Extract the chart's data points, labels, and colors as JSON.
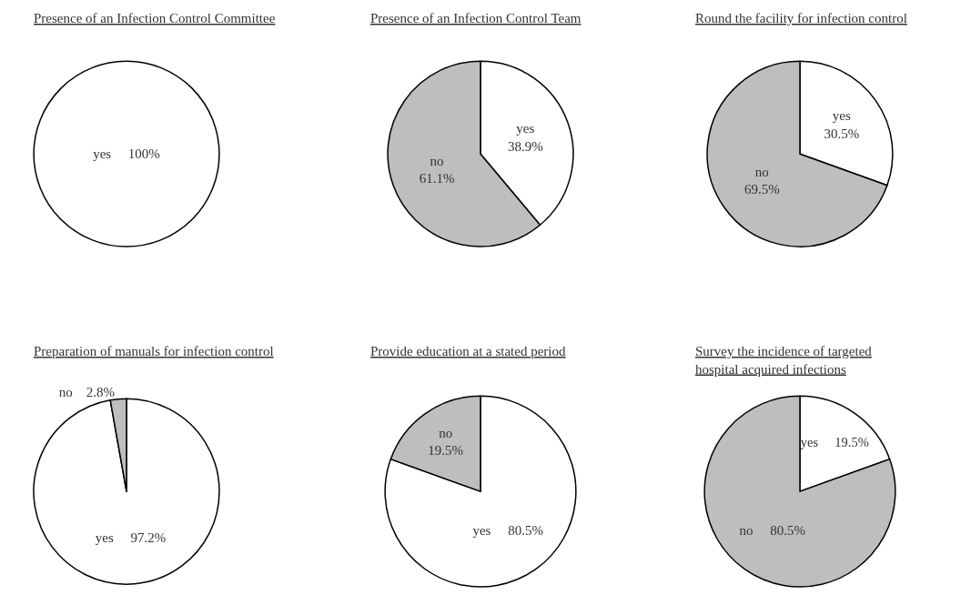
{
  "chart_data": [
    {
      "type": "pie",
      "title": "Presence of an Infection Control Committee",
      "categories": [
        "yes"
      ],
      "values": [
        100
      ],
      "value_labels": [
        "100%"
      ],
      "colors": [
        "#ffffff"
      ]
    },
    {
      "type": "pie",
      "title": "Presence of an Infection Control Team",
      "categories": [
        "yes",
        "no"
      ],
      "values": [
        38.9,
        61.1
      ],
      "value_labels": [
        "38.9%",
        "61.1%"
      ],
      "colors": [
        "#ffffff",
        "#bdbec0"
      ]
    },
    {
      "type": "pie",
      "title": "Round the facility for infection control",
      "categories": [
        "yes",
        "no"
      ],
      "values": [
        30.5,
        69.5
      ],
      "value_labels": [
        "30.5%",
        "69.5%"
      ],
      "colors": [
        "#ffffff",
        "#bdbec0"
      ]
    },
    {
      "type": "pie",
      "title": "Preparation of manuals for infection control",
      "categories": [
        "yes",
        "no"
      ],
      "values": [
        97.2,
        2.8
      ],
      "value_labels": [
        "97.2%",
        "2.8%"
      ],
      "colors": [
        "#ffffff",
        "#bdbec0"
      ]
    },
    {
      "type": "pie",
      "title": "Provide education at a stated period",
      "categories": [
        "yes",
        "no"
      ],
      "values": [
        80.5,
        19.5
      ],
      "value_labels": [
        "80.5%",
        "19.5%"
      ],
      "colors": [
        "#ffffff",
        "#bdbec0"
      ]
    },
    {
      "type": "pie",
      "title": "Survey the incidence of targeted\nhospital acquired infections",
      "categories": [
        "yes",
        "no"
      ],
      "values": [
        19.5,
        80.5
      ],
      "value_labels": [
        "19.5%",
        "80.5%"
      ],
      "colors": [
        "#ffffff",
        "#bdbec0"
      ]
    }
  ]
}
